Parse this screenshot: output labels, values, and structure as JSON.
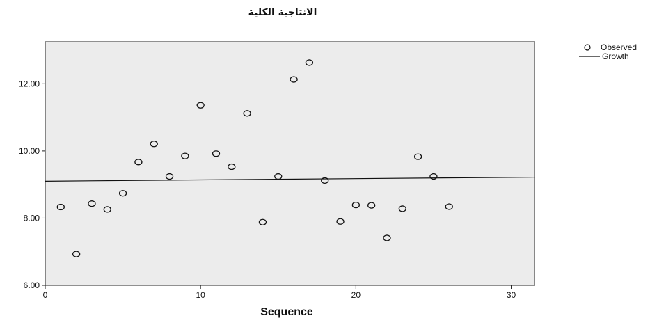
{
  "chart_data": {
    "type": "scatter",
    "title": "الانتاجية الكلية",
    "xlabel": "Sequence",
    "ylabel": "",
    "xlim": [
      0,
      31.5
    ],
    "ylim": [
      6.0,
      13.25
    ],
    "x_ticks": [
      0,
      10,
      20,
      30
    ],
    "x_tick_labels": [
      "0",
      "10",
      "20",
      "30"
    ],
    "y_ticks": [
      6,
      8,
      10,
      12
    ],
    "y_tick_labels": [
      "6.00",
      "8.00",
      "10.00",
      "12.00"
    ],
    "grid": false,
    "legend_position": "top-right",
    "colors": {
      "plot_background": "#ececec",
      "marker": "#111111",
      "line": "#111111"
    },
    "series": [
      {
        "name": "Observed",
        "kind": "markers",
        "x": [
          1,
          2,
          3,
          4,
          5,
          6,
          7,
          8,
          9,
          10,
          11,
          12,
          13,
          14,
          15,
          16,
          17,
          18,
          19,
          20,
          21,
          22,
          23,
          24,
          25,
          26
        ],
        "y": [
          8.33,
          6.93,
          8.43,
          8.26,
          8.74,
          9.67,
          10.21,
          9.24,
          9.85,
          11.36,
          9.92,
          9.53,
          11.12,
          7.88,
          9.24,
          12.13,
          12.63,
          9.12,
          7.9,
          8.39,
          8.38,
          7.41,
          8.28,
          9.83,
          9.24,
          8.34
        ]
      },
      {
        "name": "Growth",
        "kind": "line",
        "x": [
          0,
          31.5
        ],
        "y": [
          9.1,
          9.22
        ]
      }
    ]
  }
}
